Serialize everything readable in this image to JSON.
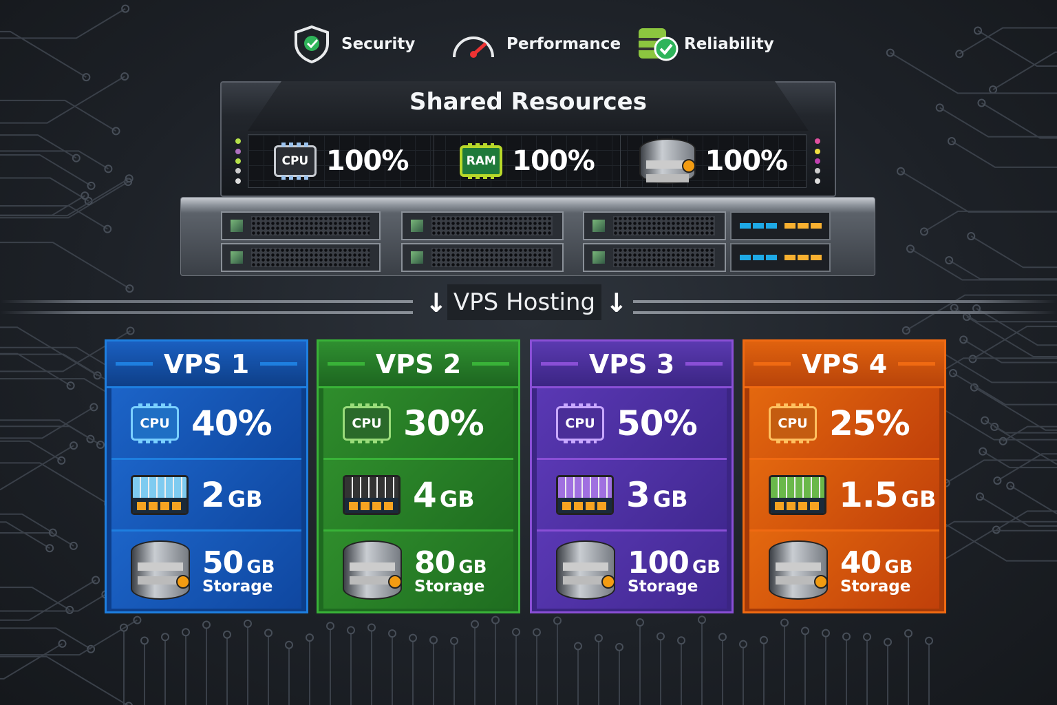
{
  "features": [
    {
      "label": "Security",
      "icon": "shield-check-icon"
    },
    {
      "label": "Performance",
      "icon": "speedometer-icon"
    },
    {
      "label": "Reliability",
      "icon": "database-check-icon"
    }
  ],
  "server": {
    "title": "Shared Resources",
    "resources": [
      {
        "chip_label": "CPU",
        "value": "100%",
        "icon": "cpu-icon"
      },
      {
        "chip_label": "RAM",
        "value": "100%",
        "icon": "ram-chip-icon"
      },
      {
        "chip_label": "",
        "value": "100%",
        "icon": "storage-icon"
      }
    ]
  },
  "divider": {
    "label": "VPS Hosting",
    "arrow": "↓"
  },
  "vps": [
    {
      "name": "VPS 1",
      "cpu_label": "CPU",
      "cpu": "40%",
      "ram": "2",
      "ram_unit": "GB",
      "storage": "50",
      "storage_unit": "GB",
      "storage_label": "Storage",
      "color": "#1e7fe0"
    },
    {
      "name": "VPS 2",
      "cpu_label": "CPU",
      "cpu": "30%",
      "ram": "4",
      "ram_unit": "GB",
      "storage": "80",
      "storage_unit": "GB",
      "storage_label": "Storage",
      "color": "#39b338"
    },
    {
      "name": "VPS 3",
      "cpu_label": "CPU",
      "cpu": "50%",
      "ram": "3",
      "ram_unit": "GB",
      "storage": "100",
      "storage_unit": "GB",
      "storage_label": "Storage",
      "color": "#8a4fd6"
    },
    {
      "name": "VPS 4",
      "cpu_label": "CPU",
      "cpu": "25%",
      "ram": "1.5",
      "ram_unit": "GB",
      "storage": "40",
      "storage_unit": "GB",
      "storage_label": "Storage",
      "color": "#f06a12"
    }
  ]
}
